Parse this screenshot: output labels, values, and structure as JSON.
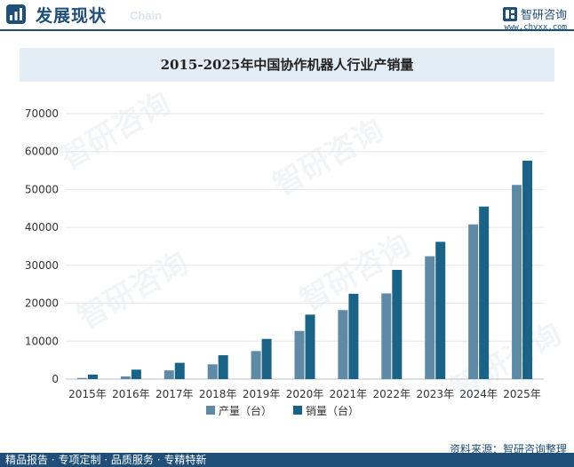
{
  "header": {
    "section_title": "发展现状",
    "section_sub": "Chain",
    "brand_name": "智研咨询",
    "brand_url": "www.chyxx.com"
  },
  "footer": {
    "slogan": "精品报告 · 专项定制 · 品质服务 · 专精特新",
    "source": "资料来源：智研咨询整理"
  },
  "watermark": "智研咨询",
  "colors": {
    "production": "#5f8aa6",
    "sales": "#1b6287",
    "axis": "#bfbfbf",
    "grid": "#e6e6e6",
    "brand": "#1f4e79"
  },
  "icons": {
    "section": "chart-badge-icon",
    "brand": "zhiyan-logo-icon"
  },
  "chart_data": {
    "type": "bar",
    "title": "2015-2025年中国协作机器人行业产销量",
    "categories": [
      "2015年",
      "2016年",
      "2017年",
      "2018年",
      "2019年",
      "2020年",
      "2021年",
      "2022年",
      "2023年",
      "2024年",
      "2025年"
    ],
    "series": [
      {
        "name": "产量（台）",
        "values": [
          300,
          700,
          2300,
          3900,
          7400,
          12700,
          18200,
          22600,
          32400,
          40800,
          51200
        ]
      },
      {
        "name": "销量（台）",
        "values": [
          1200,
          2500,
          4300,
          6300,
          10600,
          17000,
          22500,
          28800,
          36200,
          45500,
          57600
        ]
      }
    ],
    "yticks": [
      0,
      10000,
      20000,
      30000,
      40000,
      50000,
      60000,
      70000
    ],
    "ylim": [
      0,
      70000
    ],
    "grid": true,
    "legend": "bottom"
  }
}
